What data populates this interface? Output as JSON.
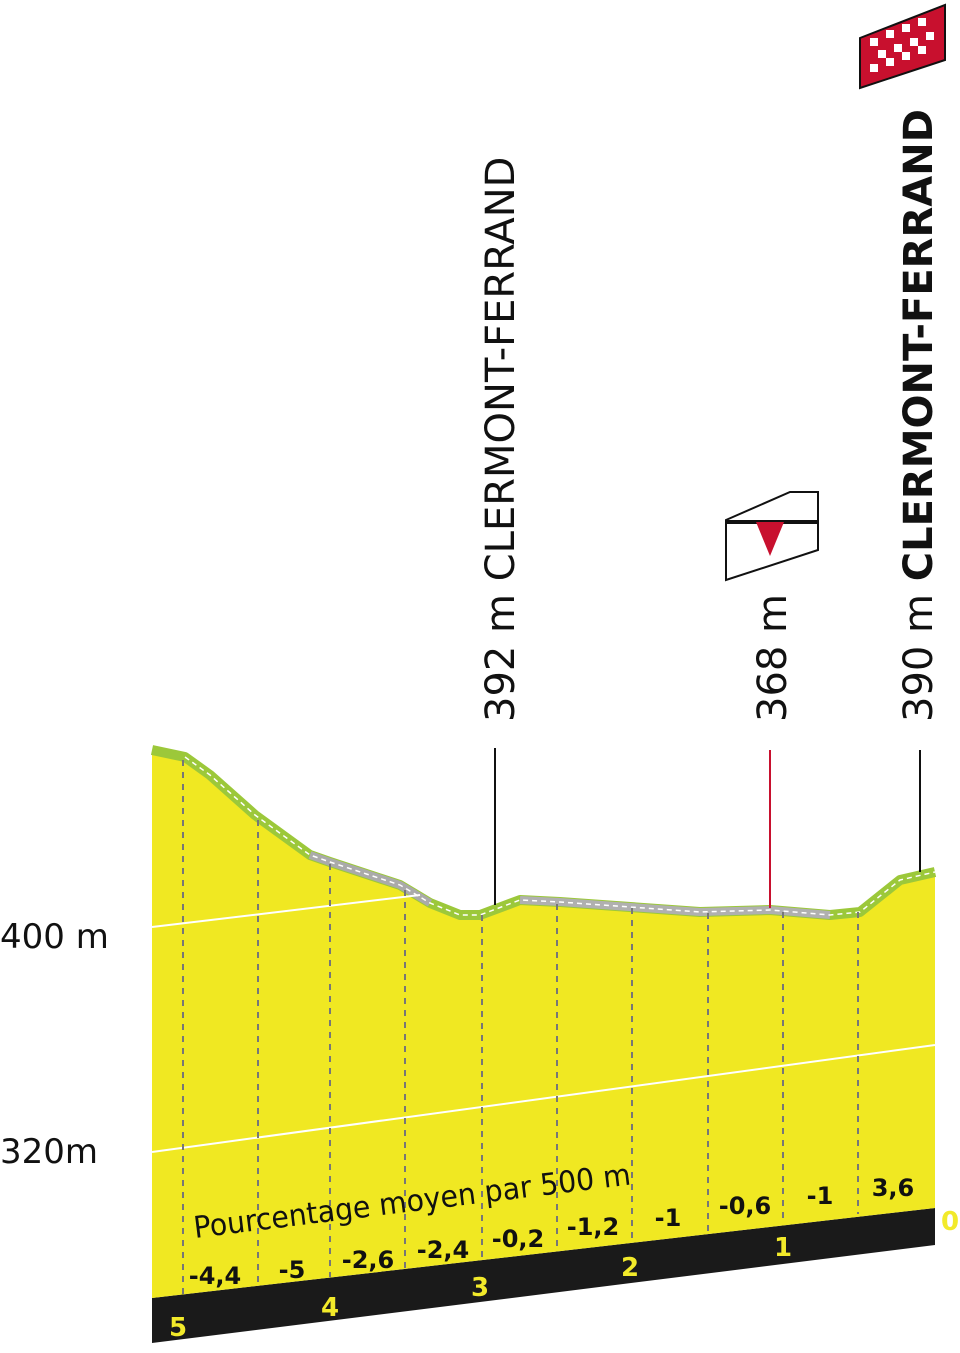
{
  "axis_labels": [
    "400 m",
    "320m"
  ],
  "markers": [
    {
      "altitude": "392 m",
      "place": "CLERMONT-FERRAND"
    },
    {
      "altitude": "368 m"
    },
    {
      "altitude": "390 m",
      "place": "CLERMONT-FERRAND"
    }
  ],
  "gradient_title": "Pourcentage moyen par 500 m",
  "gradients": [
    "-4,4",
    "-5",
    "-2,6",
    "-2,4",
    "-0,2",
    "-1,2",
    "-1",
    "-0,6",
    "-1",
    "3,6"
  ],
  "km_labels": [
    "5",
    "4",
    "3",
    "2",
    "1",
    "0"
  ]
}
